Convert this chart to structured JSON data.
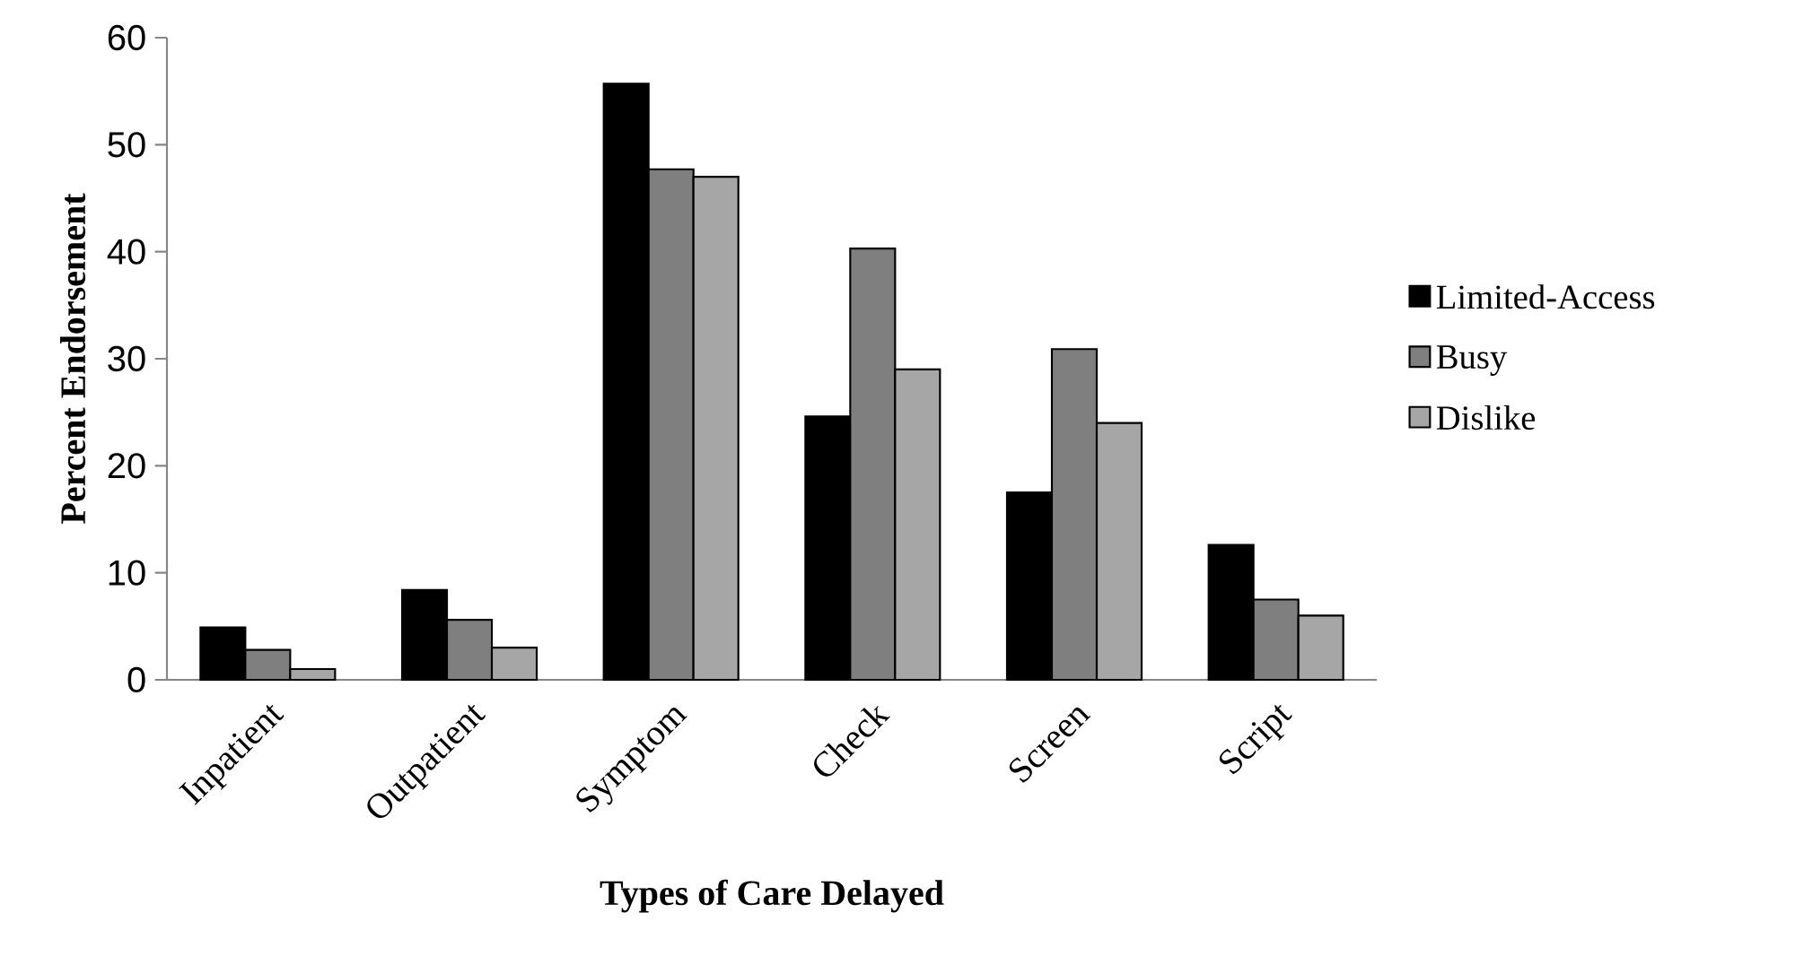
{
  "chart_data": {
    "type": "bar",
    "xlabel": "Types of Care Delayed",
    "ylabel": "Percent Endorsement",
    "categories": [
      "Inpatient",
      "Outpatient",
      "Symptom",
      "Check",
      "Screen",
      "Script"
    ],
    "series": [
      {
        "name": "Limited-Access",
        "color": "#000000",
        "values": [
          4.9,
          8.4,
          55.7,
          24.6,
          17.5,
          12.6
        ]
      },
      {
        "name": "Busy",
        "color": "#7f7f7f",
        "values": [
          2.8,
          5.6,
          47.7,
          40.3,
          30.9,
          7.5
        ]
      },
      {
        "name": "Dislike",
        "color": "#a6a6a6",
        "values": [
          1.0,
          3.0,
          47.0,
          29.0,
          24.0,
          6.0
        ]
      }
    ],
    "ylim": [
      0,
      60
    ],
    "yticks": [
      0,
      10,
      20,
      30,
      40,
      50,
      60
    ],
    "grid": false,
    "legend": "right"
  }
}
